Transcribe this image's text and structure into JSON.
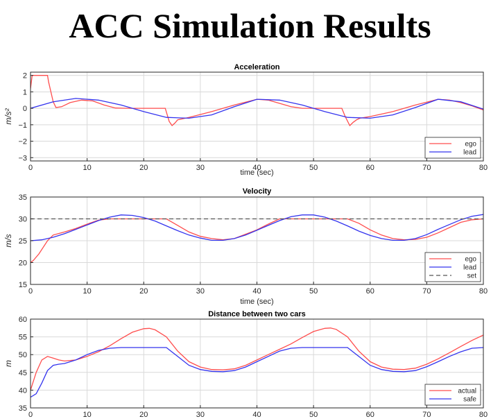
{
  "page": {
    "title": "ACC Simulation Results"
  },
  "colors": {
    "ego": "#ff4d4d",
    "lead": "#3333ee",
    "set": "#555555",
    "axis": "#262626",
    "grid": "#d9d9d9"
  },
  "chart_data": [
    {
      "type": "line",
      "title": "Acceleration",
      "xlabel": "time (sec)",
      "ylabel": "m/s²",
      "xlim": [
        0,
        80
      ],
      "ylim": [
        -3.2,
        2.2
      ],
      "xticks": [
        0,
        10,
        20,
        30,
        40,
        50,
        60,
        70,
        80
      ],
      "yticks": [
        -3,
        -2,
        -1,
        0,
        1,
        2
      ],
      "grid": true,
      "legend": "bottom-right",
      "series": [
        {
          "name": "ego",
          "color": "#ff4d4d",
          "style": "solid",
          "x": [
            0,
            0.3,
            0.6,
            3,
            3.2,
            4,
            4.5,
            5.5,
            7,
            9,
            11,
            13,
            15,
            17,
            19,
            21,
            23,
            23.8,
            24.5,
            25,
            25.5,
            26,
            28,
            32,
            36,
            40,
            42,
            44,
            46,
            48,
            50,
            52,
            54,
            55,
            55.6,
            56.4,
            57,
            57.6,
            58.2,
            60,
            64,
            68,
            72,
            74,
            76,
            78,
            80
          ],
          "y": [
            1.2,
            2.0,
            2.0,
            2.0,
            1.6,
            0.4,
            0.05,
            0.1,
            0.35,
            0.5,
            0.45,
            0.2,
            0.02,
            0,
            0,
            0,
            0,
            0,
            -0.8,
            -1.05,
            -0.9,
            -0.7,
            -0.55,
            -0.2,
            0.2,
            0.55,
            0.5,
            0.3,
            0.1,
            0,
            0,
            0,
            0,
            0,
            -0.5,
            -1.05,
            -0.85,
            -0.7,
            -0.6,
            -0.5,
            -0.2,
            0.2,
            0.55,
            0.5,
            0.35,
            0.15,
            -0.1
          ]
        },
        {
          "name": "lead",
          "color": "#3333ee",
          "style": "solid",
          "x": [
            0,
            4,
            8,
            12,
            16,
            20,
            24,
            28,
            32,
            36,
            40,
            44,
            48,
            52,
            56,
            60,
            64,
            68,
            72,
            76,
            80
          ],
          "y": [
            0,
            0.4,
            0.6,
            0.5,
            0.2,
            -0.2,
            -0.55,
            -0.6,
            -0.4,
            0.1,
            0.55,
            0.5,
            0.2,
            -0.2,
            -0.55,
            -0.6,
            -0.4,
            0.05,
            0.55,
            0.4,
            -0.05
          ]
        }
      ]
    },
    {
      "type": "line",
      "title": "Velocity",
      "xlabel": "time (sec)",
      "ylabel": "m/s",
      "xlim": [
        0,
        80
      ],
      "ylim": [
        15,
        35
      ],
      "xticks": [
        0,
        10,
        20,
        30,
        40,
        50,
        60,
        70,
        80
      ],
      "yticks": [
        15,
        20,
        25,
        30,
        35
      ],
      "grid": true,
      "legend": "bottom-right",
      "series": [
        {
          "name": "ego",
          "color": "#ff4d4d",
          "style": "solid",
          "x": [
            0,
            0.5,
            1.5,
            3,
            4,
            6,
            8,
            10,
            12,
            14,
            18,
            22,
            24,
            26,
            28,
            30,
            32,
            34,
            36,
            38,
            40,
            42,
            44,
            52,
            56,
            58,
            60,
            62,
            64,
            66,
            68,
            70,
            72,
            74,
            76,
            78,
            80
          ],
          "y": [
            20,
            20.5,
            22,
            25,
            26.3,
            27,
            27.8,
            28.8,
            29.7,
            30,
            30,
            30,
            30,
            28.5,
            27,
            26,
            25.5,
            25.2,
            25.5,
            26.5,
            27.5,
            28.8,
            30,
            30,
            30,
            29,
            27.5,
            26.3,
            25.5,
            25.2,
            25.3,
            25.8,
            26.8,
            28,
            29.2,
            29.8,
            30
          ]
        },
        {
          "name": "lead",
          "color": "#3333ee",
          "style": "solid",
          "x": [
            0,
            2,
            4,
            6,
            8,
            10,
            12,
            14,
            16,
            18,
            20,
            22,
            24,
            26,
            28,
            30,
            32,
            34,
            36,
            38,
            40,
            42,
            44,
            46,
            48,
            50,
            52,
            54,
            56,
            58,
            60,
            62,
            64,
            66,
            68,
            70,
            72,
            74,
            76,
            78,
            80
          ],
          "y": [
            25,
            25.2,
            25.8,
            26.6,
            27.6,
            28.6,
            29.6,
            30.4,
            30.9,
            30.8,
            30.3,
            29.5,
            28.4,
            27.3,
            26.3,
            25.6,
            25.1,
            25.1,
            25.5,
            26.3,
            27.4,
            28.5,
            29.6,
            30.5,
            30.9,
            30.9,
            30.4,
            29.5,
            28.4,
            27.2,
            26.2,
            25.5,
            25.1,
            25.1,
            25.5,
            26.4,
            27.6,
            28.7,
            29.8,
            30.6,
            31
          ]
        },
        {
          "name": "set",
          "color": "#555555",
          "style": "dashed",
          "x": [
            0,
            80
          ],
          "y": [
            30,
            30
          ]
        }
      ]
    },
    {
      "type": "line",
      "title": "Distance between two cars",
      "xlabel": "",
      "ylabel": "m",
      "xlim": [
        0,
        80
      ],
      "ylim": [
        35,
        60
      ],
      "xticks": [
        0,
        10,
        20,
        30,
        40,
        50,
        60,
        70,
        80
      ],
      "yticks": [
        35,
        40,
        45,
        50,
        55,
        60
      ],
      "grid": true,
      "legend": "bottom-right",
      "series": [
        {
          "name": "actual",
          "color": "#ff4d4d",
          "style": "solid",
          "x": [
            0,
            1,
            2,
            3,
            4,
            5,
            6,
            8,
            10,
            12,
            14,
            16,
            18,
            20,
            21,
            22,
            24,
            26,
            28,
            30,
            32,
            34,
            36,
            38,
            40,
            42,
            44,
            46,
            48,
            50,
            52,
            53,
            54,
            56,
            58,
            60,
            62,
            64,
            66,
            68,
            70,
            72,
            74,
            76,
            78,
            80
          ],
          "y": [
            40,
            45,
            48.5,
            49.5,
            49,
            48.5,
            48.2,
            48.5,
            49.5,
            50.8,
            52.5,
            54.5,
            56.3,
            57.3,
            57.4,
            57,
            55,
            51,
            48,
            46.5,
            45.8,
            45.7,
            46,
            47,
            48.5,
            50,
            51.5,
            53,
            54.8,
            56.5,
            57.4,
            57.5,
            57.1,
            55,
            51,
            48,
            46.5,
            45.9,
            45.8,
            46.2,
            47.3,
            48.8,
            50.5,
            52.3,
            54,
            55.5
          ]
        },
        {
          "name": "safe",
          "color": "#3333ee",
          "style": "solid",
          "x": [
            0,
            1,
            2,
            3,
            4,
            5,
            6,
            8,
            10,
            12,
            14,
            16,
            18,
            20,
            22,
            24,
            26,
            28,
            30,
            32,
            34,
            36,
            38,
            40,
            42,
            44,
            46,
            48,
            50,
            52,
            54,
            56,
            58,
            60,
            62,
            64,
            66,
            68,
            70,
            72,
            74,
            76,
            78,
            80
          ],
          "y": [
            38,
            39,
            42,
            45.5,
            47,
            47.3,
            47.5,
            48.5,
            50,
            51.2,
            51.8,
            52,
            52,
            52,
            52,
            52,
            49.5,
            47,
            45.8,
            45.3,
            45.2,
            45.5,
            46.5,
            48,
            49.5,
            51,
            51.8,
            52,
            52,
            52,
            52,
            52,
            49.5,
            47,
            45.8,
            45.3,
            45.2,
            45.5,
            46.6,
            48,
            49.5,
            50.8,
            51.8,
            52
          ]
        }
      ]
    }
  ]
}
